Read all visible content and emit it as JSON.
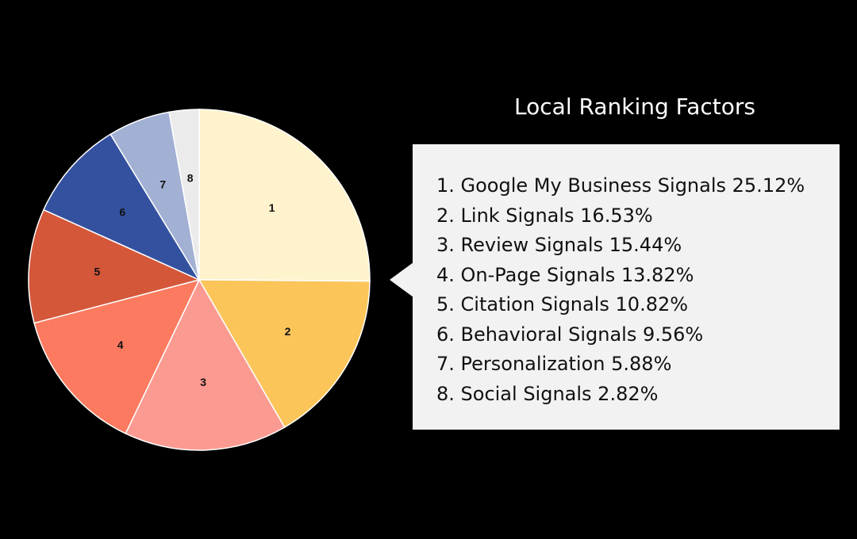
{
  "chart_data": {
    "type": "pie",
    "title": "Local Ranking Factors",
    "slices": [
      {
        "label": "1",
        "name": "Google My Business Signals",
        "value": 25.12,
        "color": "#fef3cd"
      },
      {
        "label": "2",
        "name": "Link Signals",
        "value": 16.53,
        "color": "#fbc55a"
      },
      {
        "label": "3",
        "name": "Review Signals",
        "value": 15.44,
        "color": "#fb9a91"
      },
      {
        "label": "4",
        "name": "On-Page Signals",
        "value": 13.82,
        "color": "#fc7a5f"
      },
      {
        "label": "5",
        "name": "Citation Signals",
        "value": 10.82,
        "color": "#d4573a"
      },
      {
        "label": "6",
        "name": "Behavioral Signals",
        "value": 9.56,
        "color": "#34519f"
      },
      {
        "label": "7",
        "name": "Personalization",
        "value": 5.88,
        "color": "#a2b0d4"
      },
      {
        "label": "8",
        "name": "Social Signals",
        "value": 2.82,
        "color": "#ebebeb"
      }
    ],
    "legend": {
      "placement": "right",
      "items": [
        "1. Google My Business Signals 25.12%",
        "2. Link Signals 16.53%",
        "3. Review Signals 15.44%",
        "4. On-Page Signals 13.82%",
        "5. Citation Signals 10.82%",
        "6. Behavioral Signals 9.56%",
        "7. Personalization 5.88%",
        "8. Social Signals 2.82%"
      ]
    }
  }
}
